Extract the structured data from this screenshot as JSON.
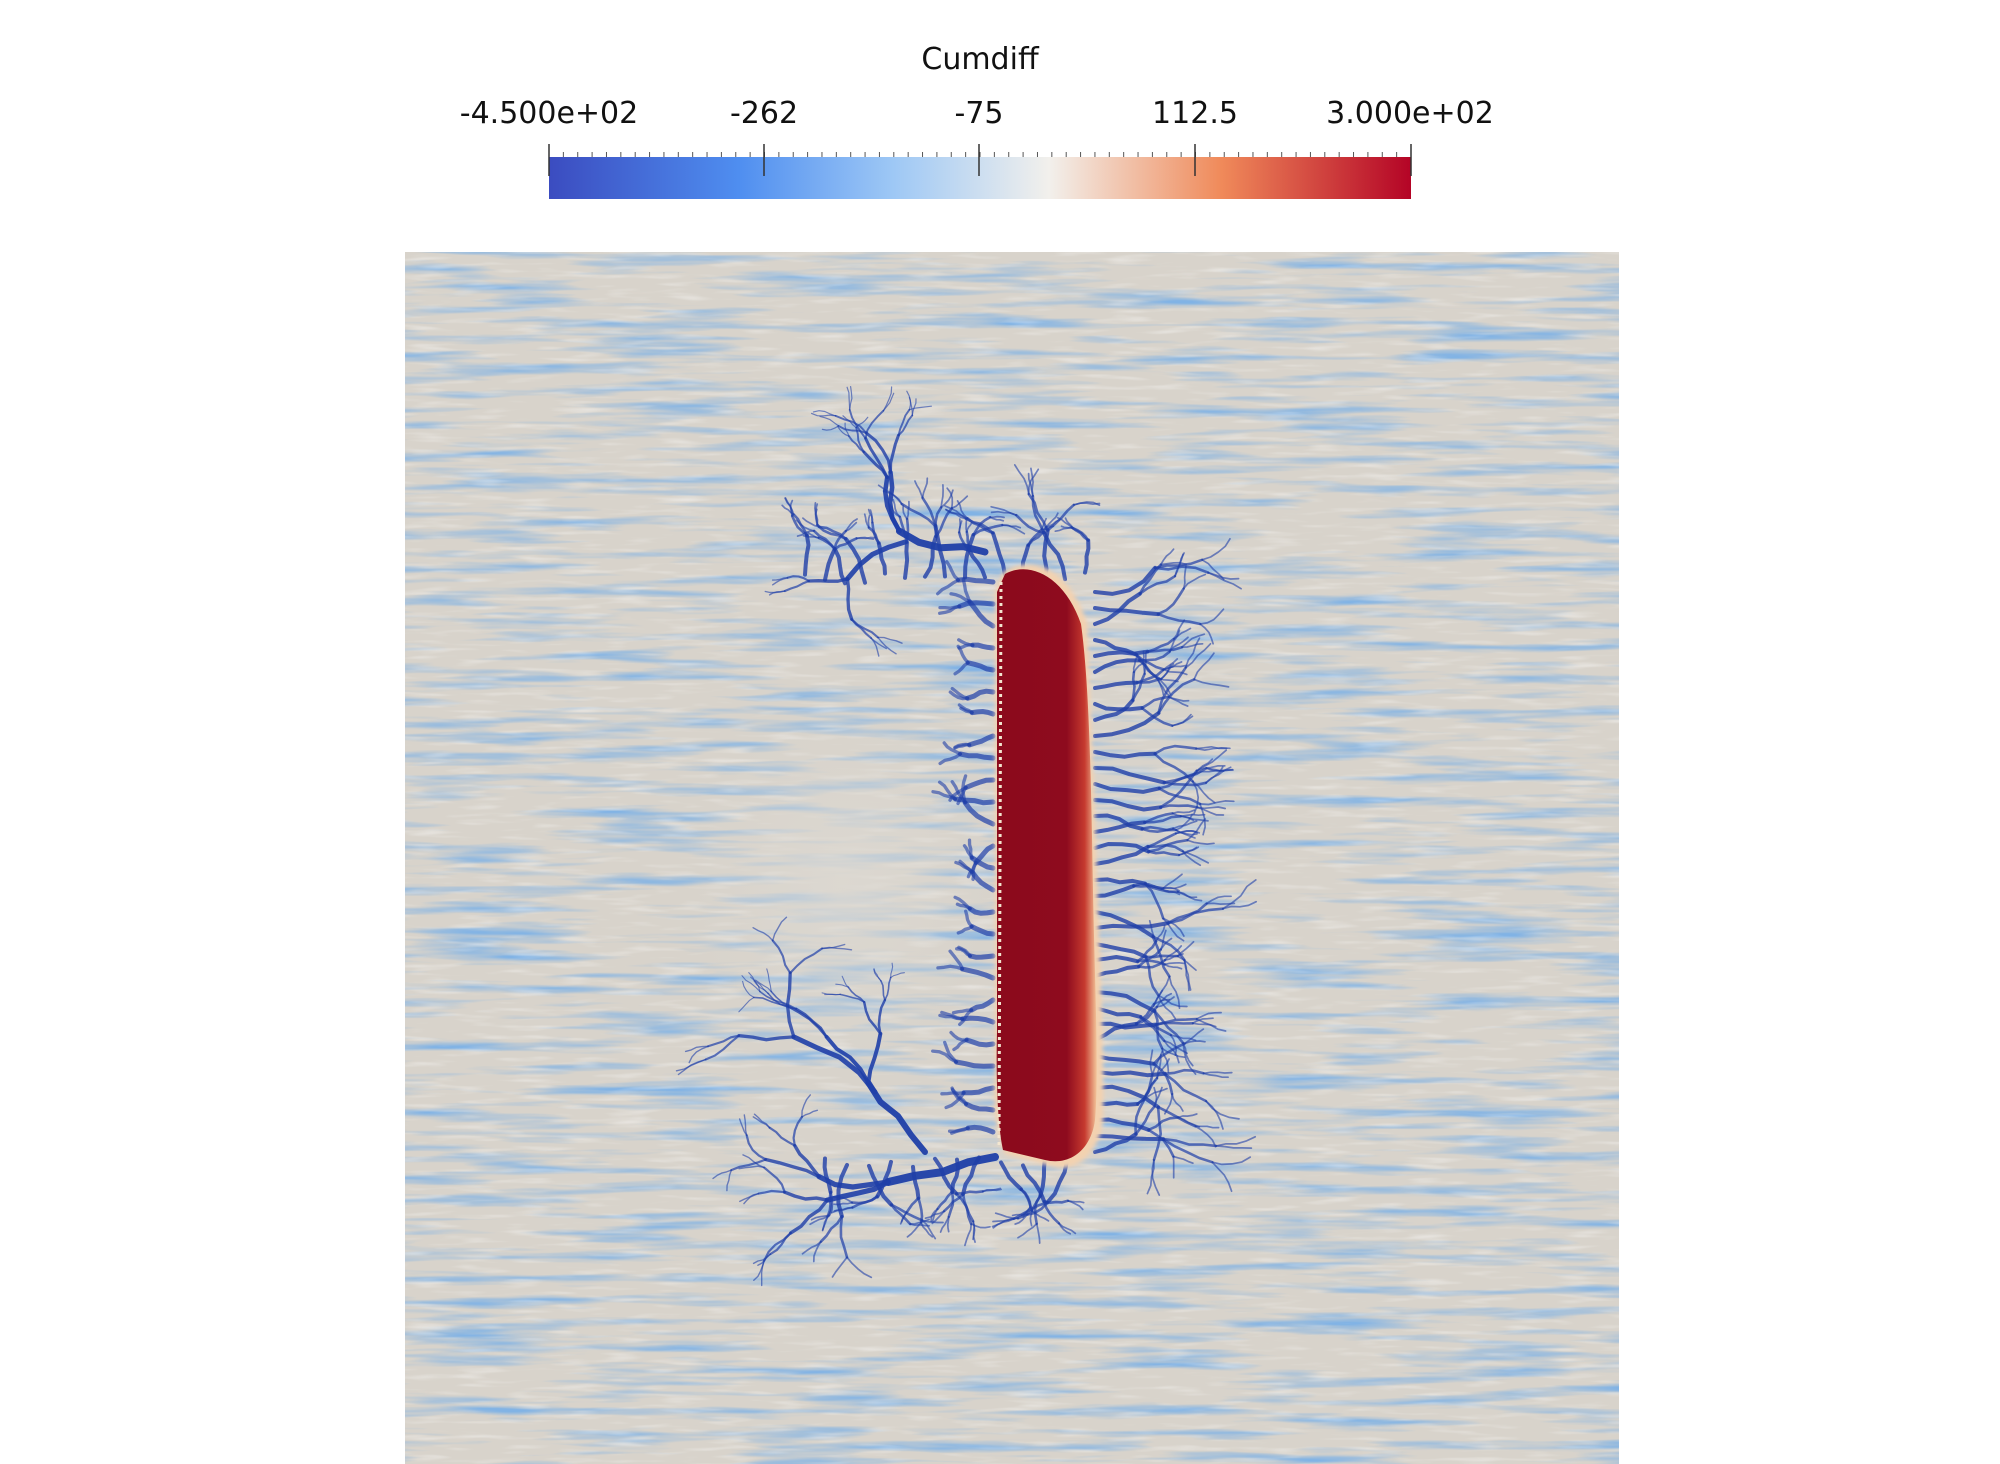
{
  "legend": {
    "title": "Cumdiff",
    "ticks": [
      "-4.500e+02",
      "-262",
      "-75",
      "112.5",
      "3.000e+02"
    ],
    "tick_values": [
      -450,
      -262,
      -75,
      112.5,
      300
    ],
    "range": [
      -450,
      300
    ],
    "colormap": "cool-to-warm",
    "colors": {
      "min": "#3b4cc0",
      "low": "#4f8ef0",
      "mid": "#f2f0ec",
      "high": "#f08a5a",
      "max": "#b40426"
    }
  },
  "field": {
    "background_color": "#d8d3cb",
    "channel_color": "#1f3fa8",
    "uplift_color": "#8b0a1c"
  }
}
